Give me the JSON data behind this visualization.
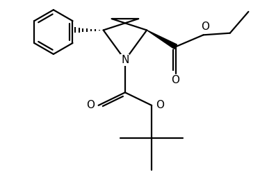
{
  "background_color": "#ffffff",
  "line_color": "#000000",
  "line_width": 1.6,
  "fig_width": 3.97,
  "fig_height": 2.58,
  "dpi": 100,
  "xlim": [
    -2.8,
    4.2
  ],
  "ylim": [
    -3.2,
    1.6
  ]
}
